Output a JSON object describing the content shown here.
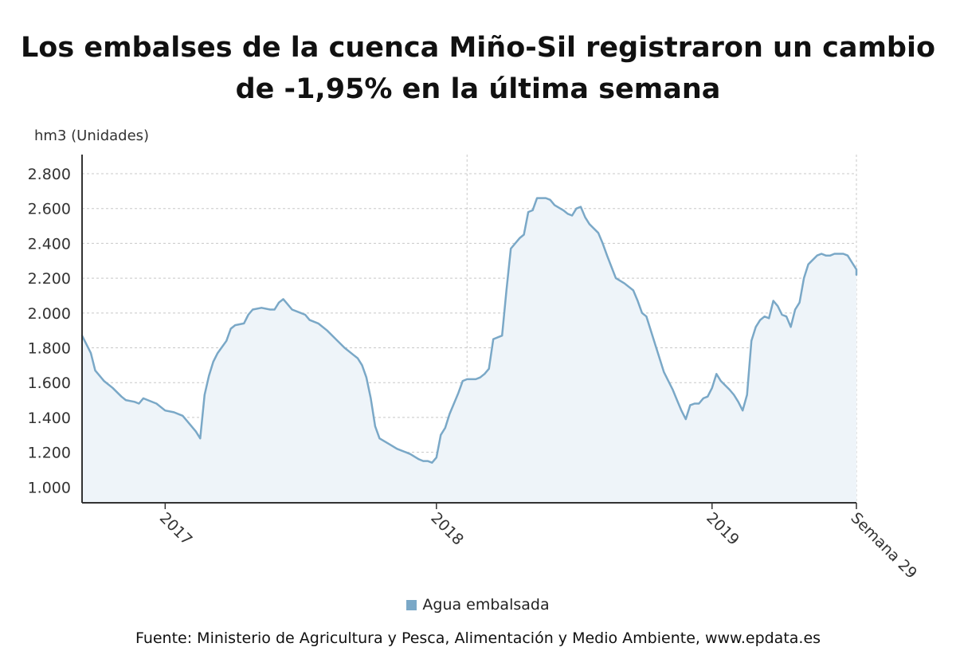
{
  "header": {
    "title": "Los embalses de la cuenca Miño-Sil registraron un cambio de -1,95% en la última semana"
  },
  "legend": {
    "label": "Agua embalsada"
  },
  "footer": {
    "source": "Fuente: Ministerio de Agricultura y Pesca, Alimentación y Medio Ambiente, www.epdata.es"
  },
  "colors": {
    "line": "#7aa8c7",
    "fill": "#eef4f9",
    "grid": "#c8c8c8",
    "axis": "#333333",
    "text": "#333333"
  },
  "chart_data": {
    "type": "area",
    "title": "Los embalses de la cuenca Miño-Sil registraron un cambio de -1,95% en la última semana",
    "ylabel": "hm3 (Unidades)",
    "xlabel": "",
    "ylim": [
      910,
      2910
    ],
    "yticks": [
      1000,
      1200,
      1400,
      1600,
      1800,
      2000,
      2200,
      2400,
      2600,
      2800
    ],
    "ytick_labels": [
      "1.000",
      "1.200",
      "1.400",
      "1.600",
      "1.800",
      "2.000",
      "2.200",
      "2.400",
      "2.600",
      "2.800"
    ],
    "x_unit": "week index",
    "xlim": [
      0,
      177
    ],
    "xticks": [
      {
        "x": 19,
        "label": "2017"
      },
      {
        "x": 81,
        "label": "2018"
      },
      {
        "x": 144,
        "label": "2019"
      },
      {
        "x": 177,
        "label": "Semana 29"
      }
    ],
    "vertical_gridlines": [
      88,
      177
    ],
    "grid": true,
    "legend_position": "bottom",
    "series": [
      {
        "name": "Agua embalsada",
        "points": [
          [
            0,
            1870
          ],
          [
            2,
            1770
          ],
          [
            3,
            1670
          ],
          [
            5,
            1610
          ],
          [
            7,
            1570
          ],
          [
            9,
            1520
          ],
          [
            10,
            1500
          ],
          [
            12,
            1490
          ],
          [
            13,
            1480
          ],
          [
            14,
            1510
          ],
          [
            15,
            1500
          ],
          [
            17,
            1480
          ],
          [
            19,
            1440
          ],
          [
            21,
            1430
          ],
          [
            23,
            1410
          ],
          [
            24,
            1380
          ],
          [
            26,
            1320
          ],
          [
            27,
            1280
          ],
          [
            28,
            1530
          ],
          [
            29,
            1640
          ],
          [
            30,
            1720
          ],
          [
            31,
            1770
          ],
          [
            33,
            1840
          ],
          [
            34,
            1910
          ],
          [
            35,
            1930
          ],
          [
            37,
            1940
          ],
          [
            38,
            1990
          ],
          [
            39,
            2020
          ],
          [
            41,
            2030
          ],
          [
            43,
            2020
          ],
          [
            44,
            2020
          ],
          [
            45,
            2060
          ],
          [
            46,
            2080
          ],
          [
            47,
            2050
          ],
          [
            48,
            2020
          ],
          [
            50,
            2000
          ],
          [
            51,
            1990
          ],
          [
            52,
            1960
          ],
          [
            54,
            1940
          ],
          [
            56,
            1900
          ],
          [
            58,
            1850
          ],
          [
            60,
            1800
          ],
          [
            62,
            1760
          ],
          [
            63,
            1740
          ],
          [
            64,
            1700
          ],
          [
            65,
            1630
          ],
          [
            66,
            1510
          ],
          [
            67,
            1350
          ],
          [
            68,
            1280
          ],
          [
            70,
            1250
          ],
          [
            72,
            1220
          ],
          [
            74,
            1200
          ],
          [
            75,
            1190
          ],
          [
            77,
            1160
          ],
          [
            78,
            1150
          ],
          [
            79,
            1150
          ],
          [
            80,
            1140
          ],
          [
            81,
            1170
          ],
          [
            82,
            1300
          ],
          [
            83,
            1340
          ],
          [
            84,
            1420
          ],
          [
            86,
            1540
          ],
          [
            87,
            1610
          ],
          [
            88,
            1620
          ],
          [
            89,
            1620
          ],
          [
            90,
            1620
          ],
          [
            91,
            1630
          ],
          [
            92,
            1650
          ],
          [
            93,
            1680
          ],
          [
            94,
            1850
          ],
          [
            96,
            1870
          ],
          [
            97,
            2130
          ],
          [
            98,
            2370
          ],
          [
            100,
            2430
          ],
          [
            101,
            2450
          ],
          [
            102,
            2580
          ],
          [
            103,
            2590
          ],
          [
            104,
            2660
          ],
          [
            106,
            2660
          ],
          [
            107,
            2650
          ],
          [
            108,
            2620
          ],
          [
            110,
            2590
          ],
          [
            111,
            2570
          ],
          [
            112,
            2560
          ],
          [
            113,
            2600
          ],
          [
            114,
            2610
          ],
          [
            115,
            2550
          ],
          [
            116,
            2510
          ],
          [
            118,
            2460
          ],
          [
            119,
            2400
          ],
          [
            120,
            2330
          ],
          [
            122,
            2200
          ],
          [
            124,
            2170
          ],
          [
            126,
            2130
          ],
          [
            127,
            2070
          ],
          [
            128,
            2000
          ],
          [
            129,
            1980
          ],
          [
            130,
            1900
          ],
          [
            131,
            1820
          ],
          [
            132,
            1740
          ],
          [
            133,
            1660
          ],
          [
            135,
            1560
          ],
          [
            136,
            1500
          ],
          [
            137,
            1440
          ],
          [
            138,
            1390
          ],
          [
            139,
            1470
          ],
          [
            140,
            1480
          ],
          [
            141,
            1480
          ],
          [
            142,
            1510
          ],
          [
            143,
            1520
          ],
          [
            144,
            1570
          ],
          [
            145,
            1650
          ],
          [
            146,
            1610
          ],
          [
            148,
            1560
          ],
          [
            149,
            1530
          ],
          [
            150,
            1490
          ],
          [
            151,
            1440
          ],
          [
            152,
            1530
          ],
          [
            153,
            1840
          ],
          [
            154,
            1920
          ],
          [
            155,
            1960
          ],
          [
            156,
            1980
          ],
          [
            157,
            1970
          ],
          [
            158,
            2070
          ],
          [
            159,
            2040
          ],
          [
            160,
            1990
          ],
          [
            161,
            1980
          ],
          [
            162,
            1920
          ],
          [
            163,
            2020
          ],
          [
            164,
            2060
          ],
          [
            165,
            2200
          ],
          [
            166,
            2280
          ],
          [
            168,
            2330
          ],
          [
            169,
            2340
          ],
          [
            170,
            2330
          ],
          [
            171,
            2330
          ],
          [
            172,
            2340
          ],
          [
            174,
            2340
          ],
          [
            175,
            2330
          ],
          [
            176,
            2290
          ],
          [
            177,
            2250
          ],
          [
            178,
            2220
          ]
        ]
      }
    ]
  }
}
